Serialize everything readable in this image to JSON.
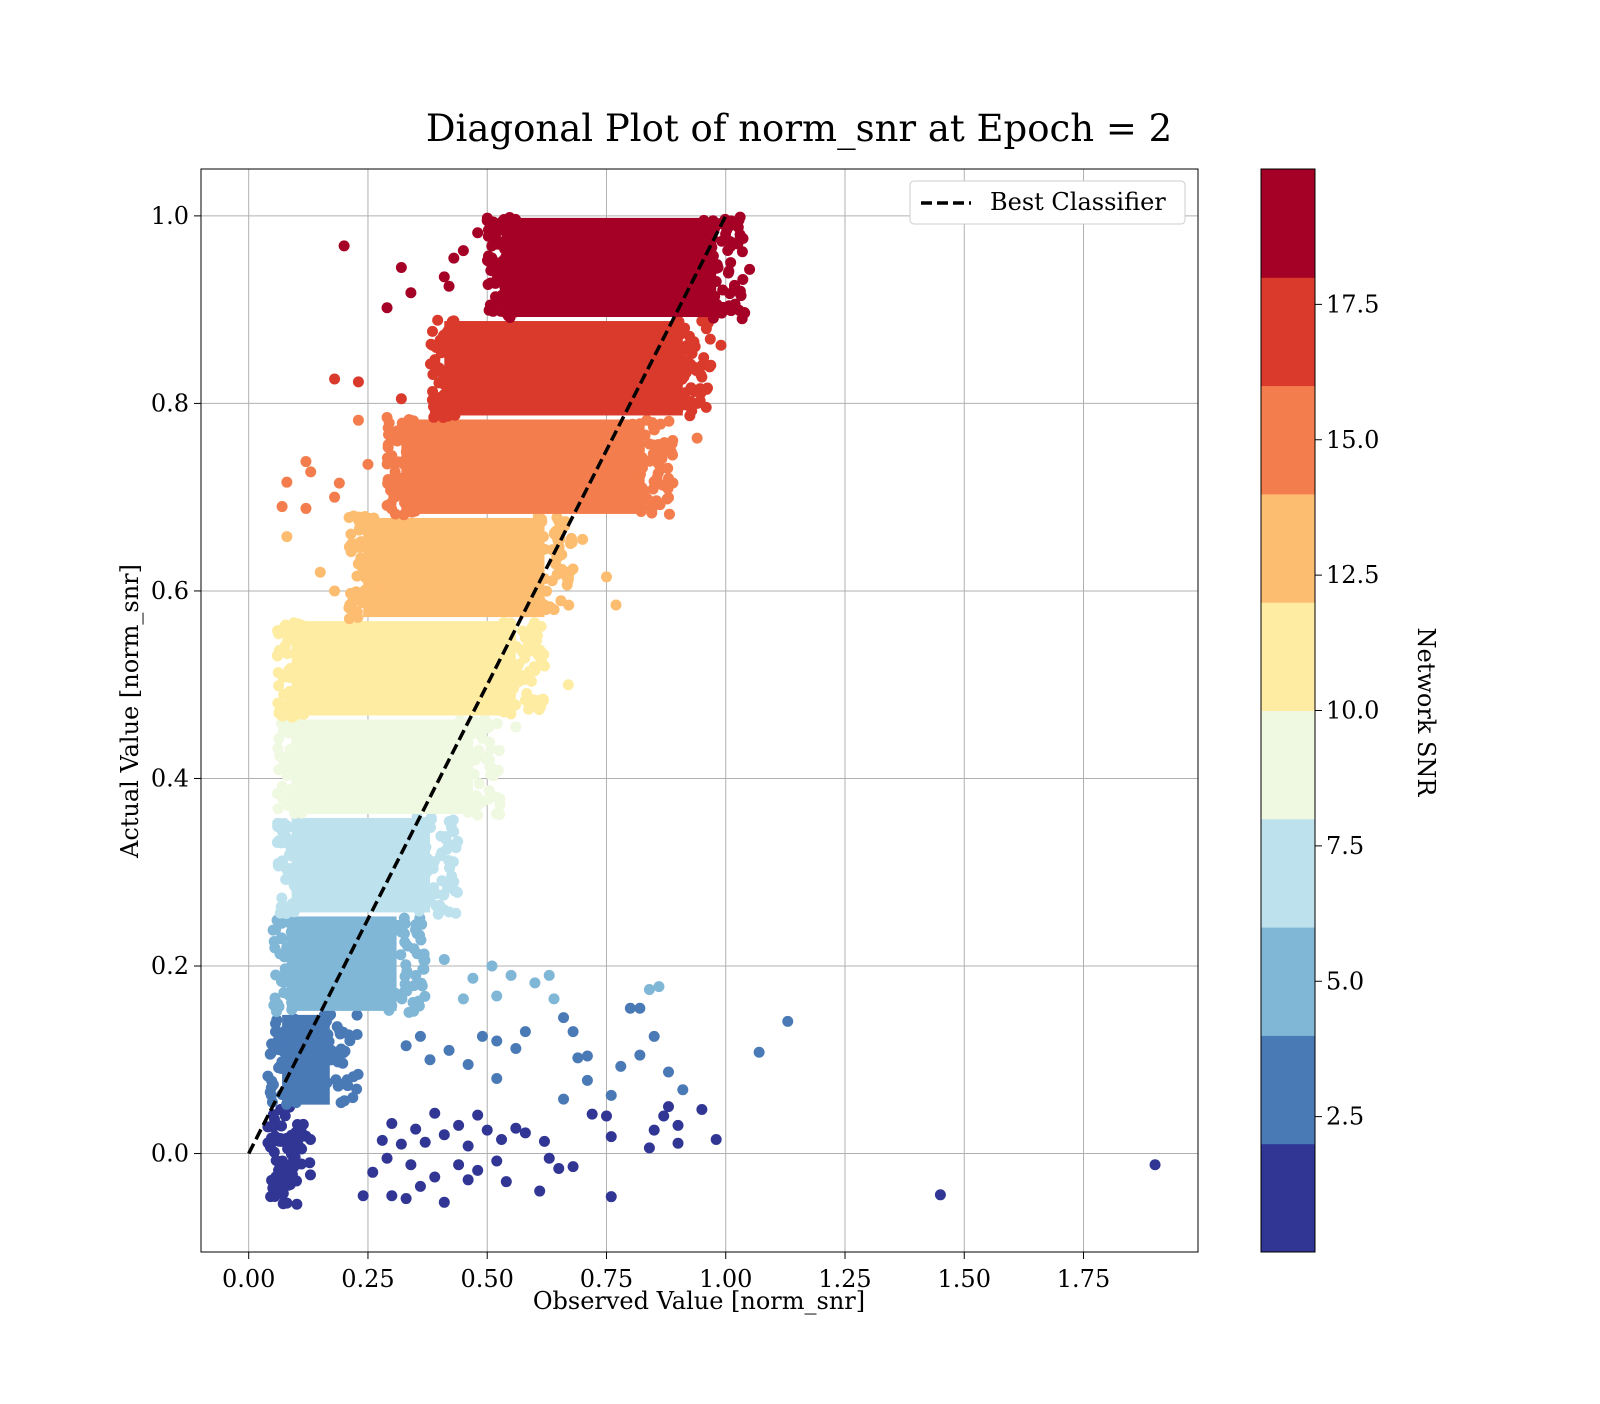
{
  "chart_data": {
    "type": "scatter",
    "title": "Diagonal Plot of norm_snr at Epoch = 2",
    "xlabel": "Observed Value [norm_snr]",
    "ylabel": "Actual Value [norm_snr]",
    "xlim": [
      -0.1,
      1.99
    ],
    "ylim": [
      -0.105,
      1.05
    ],
    "xticks": [
      0.0,
      0.25,
      0.5,
      0.75,
      1.0,
      1.25,
      1.5,
      1.75
    ],
    "xtick_labels": [
      "0.00",
      "0.25",
      "0.50",
      "0.75",
      "1.00",
      "1.25",
      "1.50",
      "1.75"
    ],
    "yticks": [
      0.0,
      0.2,
      0.4,
      0.6,
      0.8,
      1.0
    ],
    "ytick_labels": [
      "0.0",
      "0.2",
      "0.4",
      "0.6",
      "0.8",
      "1.0"
    ],
    "grid": true,
    "legend": {
      "position": "upper right",
      "entries": [
        "Best Classifier"
      ]
    },
    "reference_line": {
      "label": "Best Classifier",
      "x": [
        0,
        1
      ],
      "y": [
        0,
        1
      ],
      "style": "dashed",
      "color": "#000000"
    },
    "colorbar": {
      "label": "Network SNR",
      "range": [
        0,
        20
      ],
      "ticks": [
        2.5,
        5.0,
        7.5,
        10.0,
        12.5,
        15.0,
        17.5
      ],
      "tick_labels": [
        "2.5",
        "5.0",
        "7.5",
        "10.0",
        "12.5",
        "15.0",
        "17.5"
      ],
      "levels": [
        0,
        2,
        4,
        6,
        8,
        10,
        12,
        14,
        16,
        18,
        20
      ],
      "colors": [
        "#313695",
        "#4a7ab6",
        "#80b6d6",
        "#bde2ee",
        "#eff8e0",
        "#feeca3",
        "#fdbd71",
        "#f47d4d",
        "#d93a2b",
        "#a50026"
      ]
    },
    "bands": [
      {
        "color_index": 0,
        "y_range": [
          -0.055,
          0.05
        ],
        "x_left": 0.04,
        "x_right": 0.13,
        "points": 75
      },
      {
        "color_index": 1,
        "y_range": [
          0.05,
          0.15
        ],
        "x_left": 0.04,
        "x_right": 0.23,
        "points": 90
      },
      {
        "color_index": 2,
        "y_range": [
          0.15,
          0.255
        ],
        "x_left": 0.05,
        "x_right": 0.37,
        "points": 110
      },
      {
        "color_index": 3,
        "y_range": [
          0.255,
          0.36
        ],
        "x_left": 0.06,
        "x_right": 0.44,
        "points": 120
      },
      {
        "color_index": 4,
        "y_range": [
          0.36,
          0.465
        ],
        "x_left": 0.06,
        "x_right": 0.53,
        "points": 120
      },
      {
        "color_index": 5,
        "y_range": [
          0.465,
          0.57
        ],
        "x_left": 0.06,
        "x_right": 0.62,
        "points": 130
      },
      {
        "color_index": 6,
        "y_range": [
          0.57,
          0.68
        ],
        "x_left": 0.21,
        "x_right": 0.68,
        "points": 130
      },
      {
        "color_index": 7,
        "y_range": [
          0.68,
          0.785
        ],
        "x_left": 0.29,
        "x_right": 0.89,
        "points": 140
      },
      {
        "color_index": 8,
        "y_range": [
          0.785,
          0.89
        ],
        "x_left": 0.38,
        "x_right": 0.97,
        "points": 140
      },
      {
        "color_index": 9,
        "y_range": [
          0.89,
          1.0
        ],
        "x_left": 0.5,
        "x_right": 1.04,
        "points": 150
      }
    ],
    "scatter_points": [
      {
        "x": 0.2,
        "y": 0.968,
        "c": 19
      },
      {
        "x": 0.32,
        "y": 0.945,
        "c": 19
      },
      {
        "x": 0.29,
        "y": 0.902,
        "c": 19
      },
      {
        "x": 0.34,
        "y": 0.918,
        "c": 19
      },
      {
        "x": 0.41,
        "y": 0.935,
        "c": 19
      },
      {
        "x": 0.43,
        "y": 0.955,
        "c": 19
      },
      {
        "x": 0.42,
        "y": 0.925,
        "c": 19
      },
      {
        "x": 0.45,
        "y": 0.963,
        "c": 19
      },
      {
        "x": 0.48,
        "y": 0.982,
        "c": 19
      },
      {
        "x": 0.5,
        "y": 0.995,
        "c": 19
      },
      {
        "x": 0.96,
        "y": 0.925,
        "c": 19
      },
      {
        "x": 0.98,
        "y": 0.93,
        "c": 19
      },
      {
        "x": 1.05,
        "y": 0.943,
        "c": 19
      },
      {
        "x": 1.0,
        "y": 0.9,
        "c": 19
      },
      {
        "x": 1.03,
        "y": 0.98,
        "c": 19
      },
      {
        "x": 0.18,
        "y": 0.826,
        "c": 17
      },
      {
        "x": 0.23,
        "y": 0.823,
        "c": 17
      },
      {
        "x": 0.32,
        "y": 0.805,
        "c": 17
      },
      {
        "x": 0.42,
        "y": 0.808,
        "c": 17
      },
      {
        "x": 0.43,
        "y": 0.862,
        "c": 17
      },
      {
        "x": 0.95,
        "y": 0.828,
        "c": 17
      },
      {
        "x": 0.96,
        "y": 0.815,
        "c": 17
      },
      {
        "x": 0.99,
        "y": 0.862,
        "c": 17
      },
      {
        "x": 0.12,
        "y": 0.738,
        "c": 15
      },
      {
        "x": 0.08,
        "y": 0.716,
        "c": 15
      },
      {
        "x": 0.13,
        "y": 0.727,
        "c": 15
      },
      {
        "x": 0.19,
        "y": 0.715,
        "c": 15
      },
      {
        "x": 0.23,
        "y": 0.782,
        "c": 15
      },
      {
        "x": 0.29,
        "y": 0.785,
        "c": 15
      },
      {
        "x": 0.25,
        "y": 0.735,
        "c": 15
      },
      {
        "x": 0.07,
        "y": 0.69,
        "c": 15
      },
      {
        "x": 0.12,
        "y": 0.688,
        "c": 15
      },
      {
        "x": 0.18,
        "y": 0.7,
        "c": 15
      },
      {
        "x": 0.94,
        "y": 0.763,
        "c": 15
      },
      {
        "x": 0.88,
        "y": 0.72,
        "c": 15
      },
      {
        "x": 0.77,
        "y": 0.585,
        "c": 13
      },
      {
        "x": 0.75,
        "y": 0.615,
        "c": 13
      },
      {
        "x": 0.7,
        "y": 0.655,
        "c": 13
      },
      {
        "x": 0.08,
        "y": 0.658,
        "c": 13
      },
      {
        "x": 0.15,
        "y": 0.62,
        "c": 13
      },
      {
        "x": 0.18,
        "y": 0.6,
        "c": 13
      },
      {
        "x": 0.67,
        "y": 0.5,
        "c": 11
      },
      {
        "x": 0.62,
        "y": 0.52,
        "c": 11
      },
      {
        "x": 0.58,
        "y": 0.55,
        "c": 11
      },
      {
        "x": 0.48,
        "y": 0.38,
        "c": 9
      },
      {
        "x": 0.56,
        "y": 0.455,
        "c": 9
      },
      {
        "x": 0.43,
        "y": 0.29,
        "c": 7
      },
      {
        "x": 0.4,
        "y": 0.265,
        "c": 7
      },
      {
        "x": 0.41,
        "y": 0.207,
        "c": 5
      },
      {
        "x": 0.51,
        "y": 0.2,
        "c": 5
      },
      {
        "x": 0.55,
        "y": 0.19,
        "c": 5
      },
      {
        "x": 0.63,
        "y": 0.19,
        "c": 5
      },
      {
        "x": 0.86,
        "y": 0.178,
        "c": 5
      },
      {
        "x": 0.84,
        "y": 0.175,
        "c": 5
      },
      {
        "x": 0.47,
        "y": 0.187,
        "c": 5
      },
      {
        "x": 0.6,
        "y": 0.182,
        "c": 5
      },
      {
        "x": 0.52,
        "y": 0.168,
        "c": 5
      },
      {
        "x": 0.64,
        "y": 0.165,
        "c": 5
      },
      {
        "x": 0.45,
        "y": 0.165,
        "c": 5
      },
      {
        "x": 1.13,
        "y": 0.141,
        "c": 3
      },
      {
        "x": 1.07,
        "y": 0.108,
        "c": 3
      },
      {
        "x": 0.8,
        "y": 0.155,
        "c": 3
      },
      {
        "x": 0.82,
        "y": 0.155,
        "c": 3
      },
      {
        "x": 0.85,
        "y": 0.125,
        "c": 3
      },
      {
        "x": 0.82,
        "y": 0.105,
        "c": 3
      },
      {
        "x": 0.78,
        "y": 0.093,
        "c": 3
      },
      {
        "x": 0.88,
        "y": 0.087,
        "c": 3
      },
      {
        "x": 0.91,
        "y": 0.068,
        "c": 3
      },
      {
        "x": 0.71,
        "y": 0.104,
        "c": 3
      },
      {
        "x": 0.69,
        "y": 0.102,
        "c": 3
      },
      {
        "x": 0.71,
        "y": 0.078,
        "c": 3
      },
      {
        "x": 0.76,
        "y": 0.062,
        "c": 3
      },
      {
        "x": 0.66,
        "y": 0.058,
        "c": 3
      },
      {
        "x": 0.68,
        "y": 0.13,
        "c": 3
      },
      {
        "x": 0.66,
        "y": 0.145,
        "c": 3
      },
      {
        "x": 0.58,
        "y": 0.13,
        "c": 3
      },
      {
        "x": 0.56,
        "y": 0.112,
        "c": 3
      },
      {
        "x": 0.49,
        "y": 0.125,
        "c": 3
      },
      {
        "x": 0.52,
        "y": 0.12,
        "c": 3
      },
      {
        "x": 0.52,
        "y": 0.08,
        "c": 3
      },
      {
        "x": 0.46,
        "y": 0.095,
        "c": 3
      },
      {
        "x": 0.42,
        "y": 0.11,
        "c": 3
      },
      {
        "x": 0.38,
        "y": 0.1,
        "c": 3
      },
      {
        "x": 0.33,
        "y": 0.115,
        "c": 3
      },
      {
        "x": 0.36,
        "y": 0.125,
        "c": 3
      },
      {
        "x": 1.9,
        "y": -0.012,
        "c": 1
      },
      {
        "x": 1.45,
        "y": -0.044,
        "c": 1
      },
      {
        "x": 0.98,
        "y": 0.015,
        "c": 1
      },
      {
        "x": 0.95,
        "y": 0.047,
        "c": 1
      },
      {
        "x": 0.9,
        "y": 0.03,
        "c": 1
      },
      {
        "x": 0.9,
        "y": 0.011,
        "c": 1
      },
      {
        "x": 0.88,
        "y": 0.05,
        "c": 1
      },
      {
        "x": 0.87,
        "y": 0.04,
        "c": 1
      },
      {
        "x": 0.85,
        "y": 0.025,
        "c": 1
      },
      {
        "x": 0.84,
        "y": 0.006,
        "c": 1
      },
      {
        "x": 0.76,
        "y": 0.018,
        "c": 1
      },
      {
        "x": 0.75,
        "y": 0.04,
        "c": 1
      },
      {
        "x": 0.72,
        "y": 0.042,
        "c": 1
      },
      {
        "x": 0.76,
        "y": -0.046,
        "c": 1
      },
      {
        "x": 0.68,
        "y": -0.014,
        "c": 1
      },
      {
        "x": 0.65,
        "y": -0.016,
        "c": 1
      },
      {
        "x": 0.61,
        "y": -0.04,
        "c": 1
      },
      {
        "x": 0.63,
        "y": -0.005,
        "c": 1
      },
      {
        "x": 0.62,
        "y": 0.013,
        "c": 1
      },
      {
        "x": 0.58,
        "y": 0.022,
        "c": 1
      },
      {
        "x": 0.56,
        "y": 0.027,
        "c": 1
      },
      {
        "x": 0.53,
        "y": 0.015,
        "c": 1
      },
      {
        "x": 0.5,
        "y": 0.025,
        "c": 1
      },
      {
        "x": 0.48,
        "y": 0.041,
        "c": 1
      },
      {
        "x": 0.46,
        "y": 0.008,
        "c": 1
      },
      {
        "x": 0.44,
        "y": 0.03,
        "c": 1
      },
      {
        "x": 0.41,
        "y": 0.02,
        "c": 1
      },
      {
        "x": 0.39,
        "y": 0.043,
        "c": 1
      },
      {
        "x": 0.37,
        "y": 0.012,
        "c": 1
      },
      {
        "x": 0.35,
        "y": 0.026,
        "c": 1
      },
      {
        "x": 0.32,
        "y": 0.01,
        "c": 1
      },
      {
        "x": 0.3,
        "y": 0.032,
        "c": 1
      },
      {
        "x": 0.28,
        "y": 0.014,
        "c": 1
      },
      {
        "x": 0.26,
        "y": -0.02,
        "c": 1
      },
      {
        "x": 0.24,
        "y": -0.045,
        "c": 1
      },
      {
        "x": 0.3,
        "y": -0.045,
        "c": 1
      },
      {
        "x": 0.33,
        "y": -0.048,
        "c": 1
      },
      {
        "x": 0.36,
        "y": -0.035,
        "c": 1
      },
      {
        "x": 0.41,
        "y": -0.052,
        "c": 1
      },
      {
        "x": 0.39,
        "y": -0.025,
        "c": 1
      },
      {
        "x": 0.44,
        "y": -0.012,
        "c": 1
      },
      {
        "x": 0.46,
        "y": -0.028,
        "c": 1
      },
      {
        "x": 0.48,
        "y": -0.018,
        "c": 1
      },
      {
        "x": 0.52,
        "y": -0.008,
        "c": 1
      },
      {
        "x": 0.54,
        "y": -0.03,
        "c": 1
      },
      {
        "x": 0.34,
        "y": -0.012,
        "c": 1
      },
      {
        "x": 0.29,
        "y": -0.005,
        "c": 1
      }
    ]
  }
}
